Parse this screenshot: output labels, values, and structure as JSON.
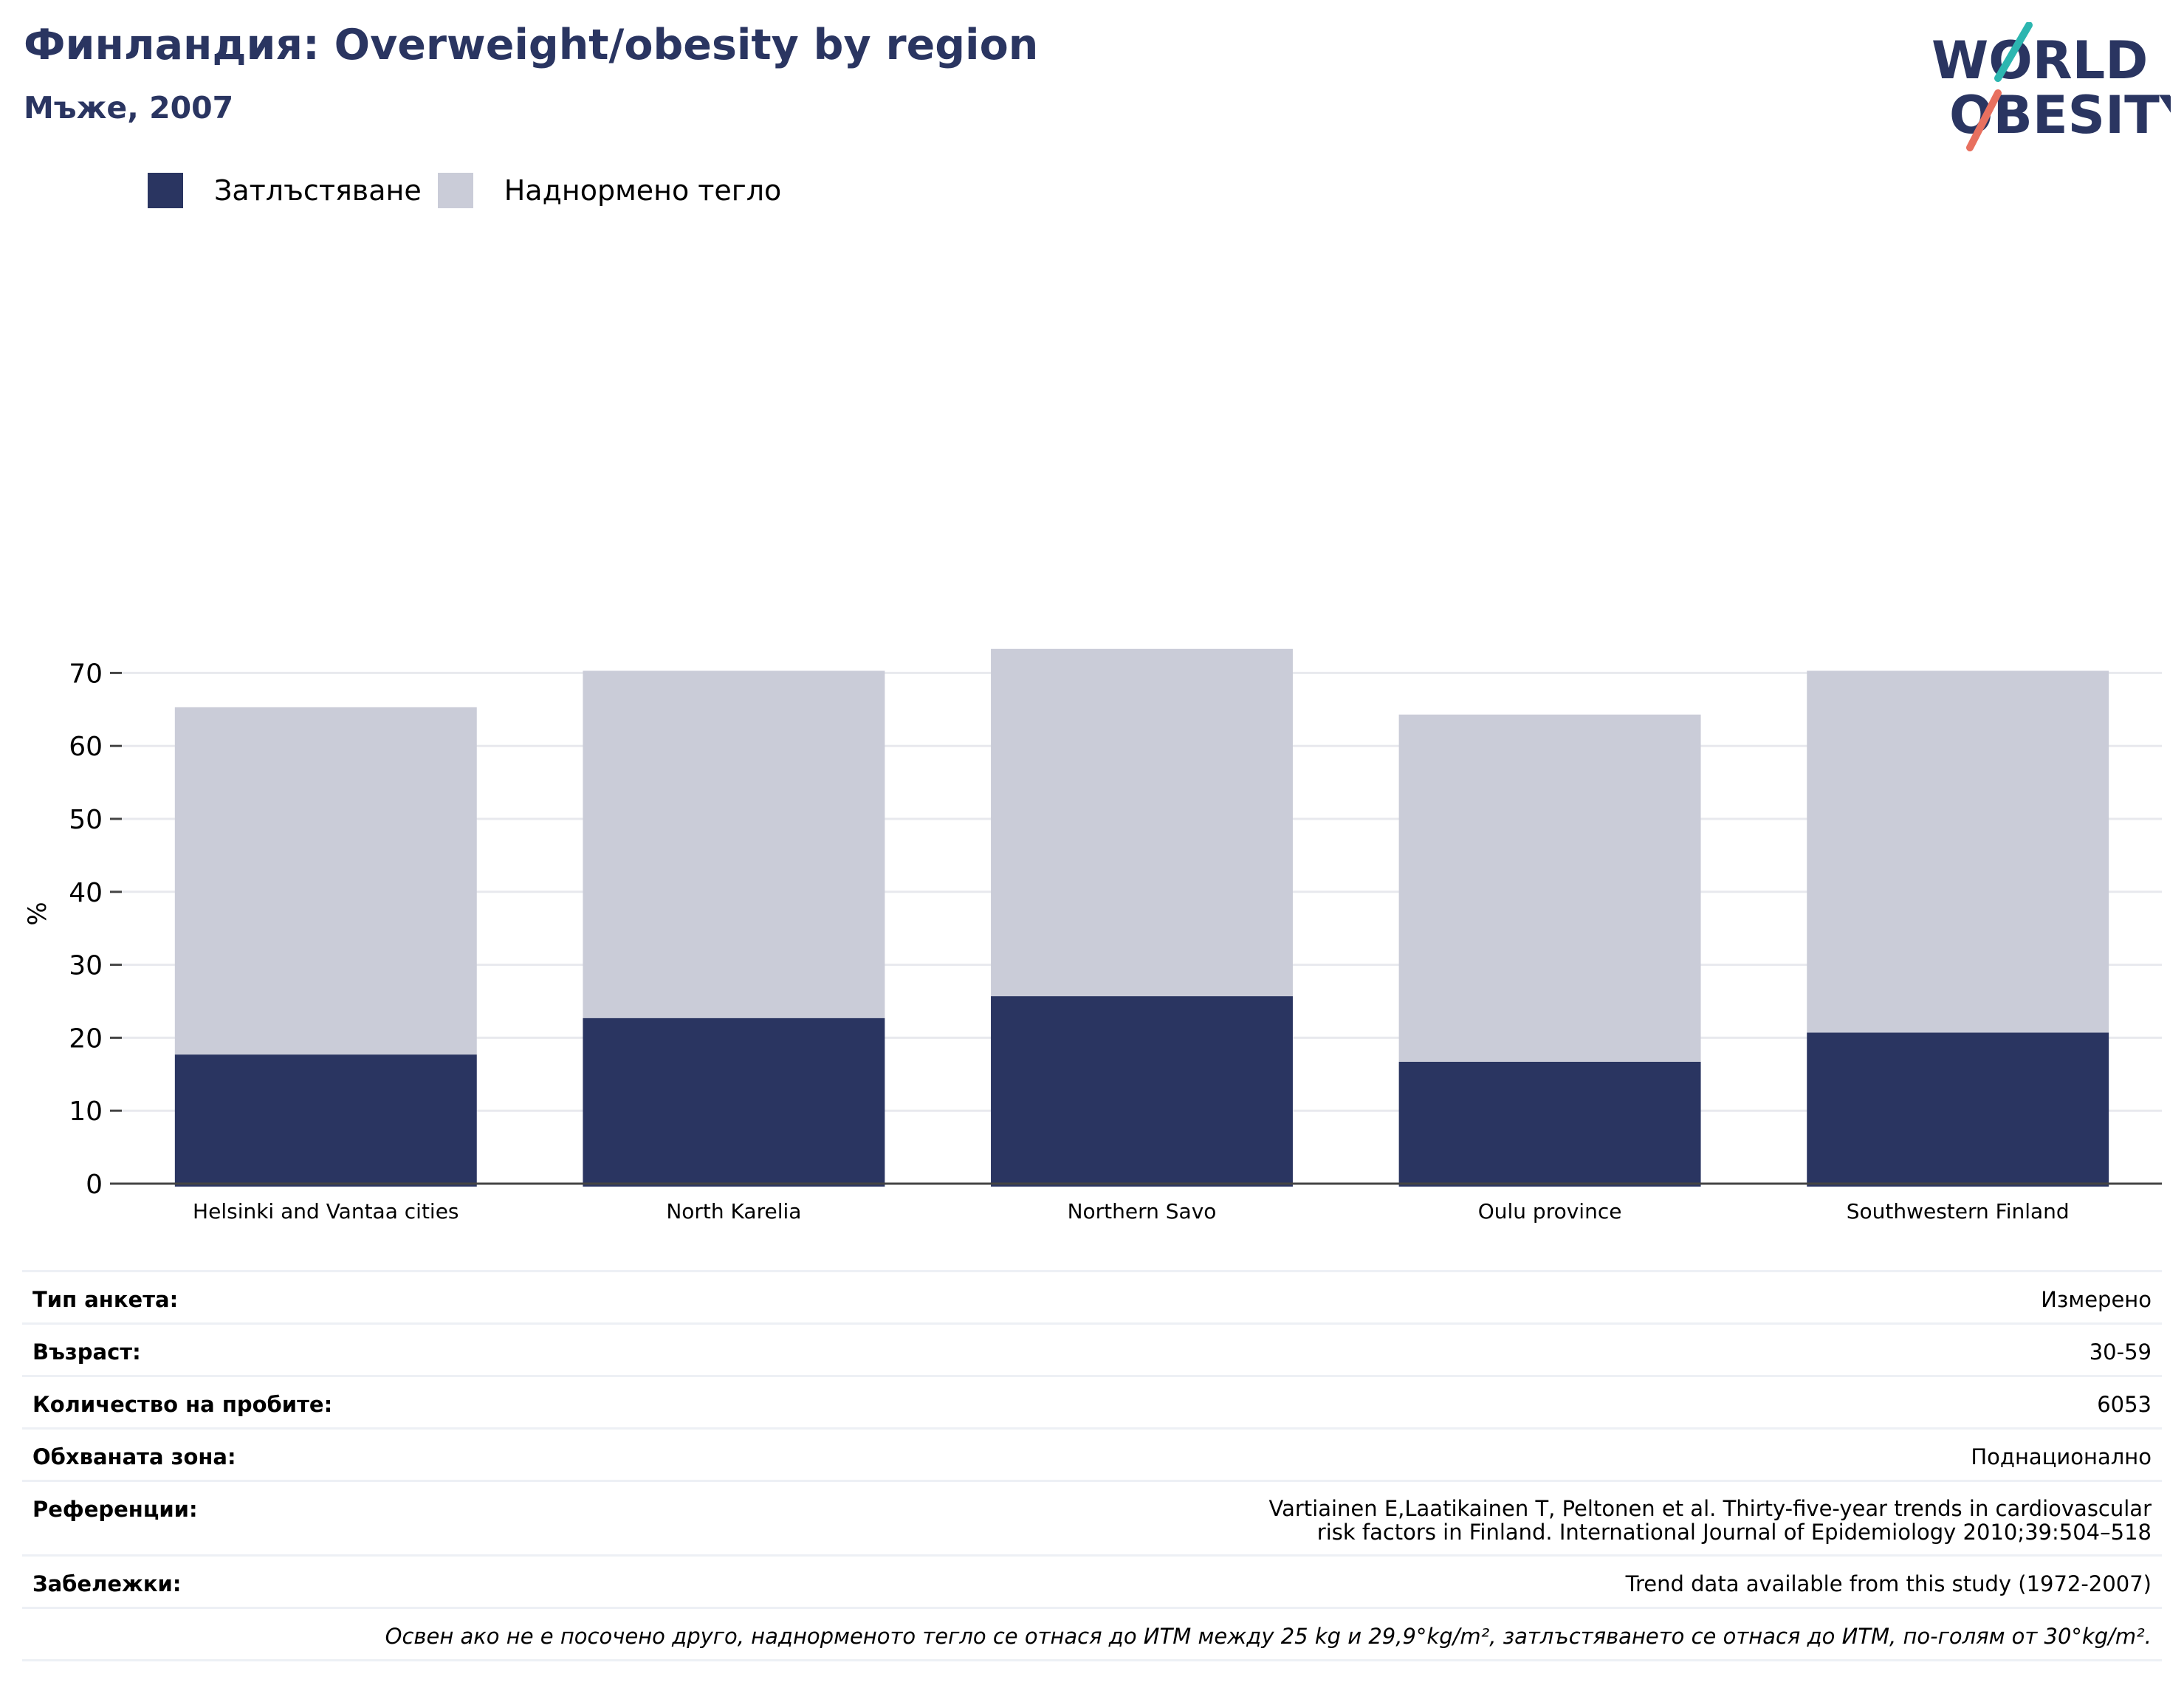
{
  "header": {
    "title": "Финландия: Overweight/obesity by region",
    "subtitle": "Мъже, 2007"
  },
  "logo": {
    "line1": "WORLD",
    "line2": "OBESITY",
    "colors": {
      "navy": "#2a3561",
      "teal": "#2cb6b0",
      "coral": "#e8705f"
    }
  },
  "chart_data": {
    "type": "bar",
    "stacked": true,
    "categories": [
      "Helsinki and Vantaa cities",
      "North Karelia",
      "Northern Savo",
      "Oulu province",
      "Southwestern Finland"
    ],
    "series": [
      {
        "name": "Затлъстяване",
        "color": "#2a3561",
        "values": [
          17.7,
          22.7,
          25.7,
          16.7,
          20.7
        ]
      },
      {
        "name": "Наднормено тегло",
        "color": "#caccd8",
        "values": [
          47.6,
          47.6,
          47.6,
          47.6,
          49.6
        ]
      }
    ],
    "totals": [
      65.3,
      70.3,
      73.3,
      64.3,
      70.3
    ],
    "ylabel": "%",
    "ylim": [
      0,
      75
    ],
    "yticks": [
      0,
      10,
      20,
      30,
      40,
      50,
      60,
      70
    ],
    "grid": true,
    "legend_position": "top-left"
  },
  "info": {
    "rows": [
      {
        "key": "Тип анкета:",
        "value": "Измерено"
      },
      {
        "key": "Възраст:",
        "value": "30-59"
      },
      {
        "key": "Количество на пробите:",
        "value": "6053"
      },
      {
        "key": "Обхваната зона:",
        "value": "Поднационално"
      },
      {
        "key": "Референции:",
        "value": "Vartiainen E,Laatikainen T, Peltonen et al. Thirty-five-year trends in cardiovascular risk factors in Finland. International Journal of Epidemiology 2010;39:504–518"
      },
      {
        "key": "Забележки:",
        "value": "Trend data available from this study (1972-2007)"
      }
    ],
    "footnote": "Освен ако не е посочено друго, наднорменото тегло се отнася до ИТМ между 25 kg и 29,9°kg/m², затлъстяването се отнася до ИТМ, по-голям от 30°kg/m²."
  }
}
